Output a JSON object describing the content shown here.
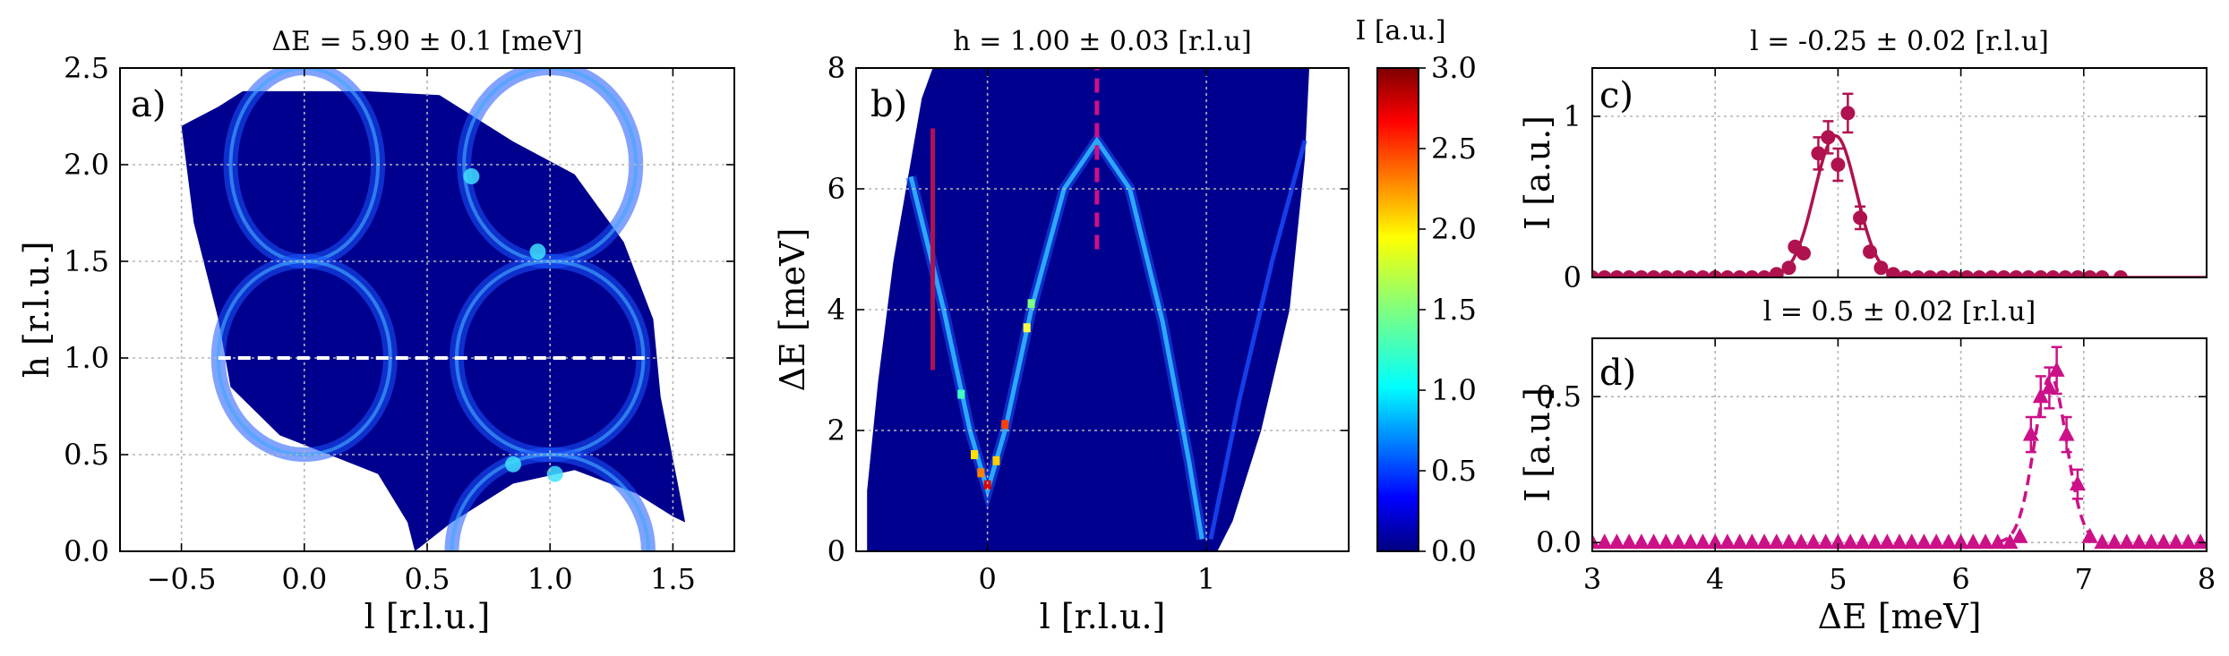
{
  "chart_data": [
    {
      "id": "a",
      "type": "heatmap",
      "panel_label": "a)",
      "title": "ΔE = 5.90 ± 0.1 [meV]",
      "xlabel": "l [r.l.u.]",
      "ylabel": "h [r.l.u.]",
      "xlim": [
        -0.75,
        1.75
      ],
      "ylim": [
        0.0,
        2.5
      ],
      "xticks": [
        "−0.5",
        "0.0",
        "0.5",
        "1.0",
        "1.5"
      ],
      "xtick_values": [
        -0.5,
        0.0,
        0.5,
        1.0,
        1.5
      ],
      "yticks": [
        "0.0",
        "0.5",
        "1.0",
        "1.5",
        "2.0",
        "2.5"
      ],
      "ytick_values": [
        0.0,
        0.5,
        1.0,
        1.5,
        2.0,
        2.5
      ],
      "grid": true,
      "colormap": "jet",
      "background_color": "#00008f",
      "rings": [
        {
          "center_l": 0.0,
          "center_h": 2.0,
          "radius_l": 0.3,
          "radius_h": 0.5
        },
        {
          "center_l": 1.0,
          "center_h": 2.0,
          "radius_l": 0.35,
          "radius_h": 0.5
        },
        {
          "center_l": 0.0,
          "center_h": 1.0,
          "radius_l": 0.35,
          "radius_h": 0.5
        },
        {
          "center_l": 1.0,
          "center_h": 1.0,
          "radius_l": 0.38,
          "radius_h": 0.5
        },
        {
          "center_l": 1.0,
          "center_h": 0.0,
          "radius_l": 0.4,
          "radius_h": 0.5
        }
      ],
      "cut_line": {
        "h": 1.0,
        "l_from": -0.35,
        "l_to": 1.4,
        "style": "dashed",
        "color": "#ffffff"
      }
    },
    {
      "id": "b",
      "type": "heatmap",
      "panel_label": "b)",
      "title": "h = 1.00 ± 0.03 [r.l.u]",
      "xlabel": "l [r.l.u.]",
      "ylabel": "ΔE [meV]",
      "xlim": [
        -0.6,
        1.65
      ],
      "ylim": [
        0,
        8
      ],
      "xticks": [
        "0",
        "1"
      ],
      "xtick_values": [
        0,
        1
      ],
      "yticks": [
        "0",
        "2",
        "4",
        "6",
        "8"
      ],
      "ytick_values": [
        0,
        2,
        4,
        6,
        8
      ],
      "grid": true,
      "colormap": "jet",
      "dispersion": {
        "minimum": {
          "l": 0.0,
          "E": 1.0
        },
        "maximum": {
          "l": 0.5,
          "E": 6.8
        }
      },
      "cut_lines": [
        {
          "l": -0.25,
          "E_from": 3.0,
          "E_to": 7.0,
          "style": "solid",
          "color": "#b0124f"
        },
        {
          "l": 0.5,
          "E_from": 5.0,
          "E_to": 8.0,
          "style": "dashed",
          "color": "#cc1188"
        }
      ],
      "colorbar": {
        "label": "I [a.u.]",
        "range": [
          0.0,
          3.0
        ],
        "ticks": [
          "0.0",
          "0.5",
          "1.0",
          "1.5",
          "2.0",
          "2.5",
          "3.0"
        ],
        "tick_values": [
          0.0,
          0.5,
          1.0,
          1.5,
          2.0,
          2.5,
          3.0
        ]
      }
    },
    {
      "id": "c",
      "type": "scatter",
      "panel_label": "c)",
      "title": "l = -0.25 ± 0.02 [r.l.u]",
      "xlabel": "",
      "ylabel": "I [a.u.]",
      "xlim": [
        3,
        8
      ],
      "ylim": [
        0,
        1.3
      ],
      "yticks": [
        "0",
        "1"
      ],
      "ytick_values": [
        0,
        1
      ],
      "grid": true,
      "color": "#b0124f",
      "marker": "circle",
      "points": [
        {
          "x": 3.0,
          "y": 0.0
        },
        {
          "x": 3.1,
          "y": 0.0
        },
        {
          "x": 3.2,
          "y": 0.0
        },
        {
          "x": 3.3,
          "y": 0.0
        },
        {
          "x": 3.4,
          "y": 0.0
        },
        {
          "x": 3.5,
          "y": 0.0
        },
        {
          "x": 3.6,
          "y": 0.0
        },
        {
          "x": 3.7,
          "y": 0.0
        },
        {
          "x": 3.8,
          "y": 0.0
        },
        {
          "x": 3.9,
          "y": 0.0
        },
        {
          "x": 4.0,
          "y": 0.0
        },
        {
          "x": 4.1,
          "y": 0.0
        },
        {
          "x": 4.2,
          "y": 0.0
        },
        {
          "x": 4.3,
          "y": 0.0
        },
        {
          "x": 4.4,
          "y": 0.0
        },
        {
          "x": 4.5,
          "y": 0.02
        },
        {
          "x": 4.6,
          "y": 0.06
        },
        {
          "x": 4.65,
          "y": 0.19
        },
        {
          "x": 4.72,
          "y": 0.15
        },
        {
          "x": 4.84,
          "y": 0.77,
          "err": 0.1
        },
        {
          "x": 4.92,
          "y": 0.87,
          "err": 0.1
        },
        {
          "x": 5.0,
          "y": 0.7,
          "err": 0.1
        },
        {
          "x": 5.08,
          "y": 1.02,
          "err": 0.12
        },
        {
          "x": 5.18,
          "y": 0.37,
          "err": 0.07
        },
        {
          "x": 5.26,
          "y": 0.16
        },
        {
          "x": 5.35,
          "y": 0.06
        },
        {
          "x": 5.45,
          "y": 0.02
        },
        {
          "x": 5.55,
          "y": 0.0
        },
        {
          "x": 5.65,
          "y": 0.0
        },
        {
          "x": 5.75,
          "y": 0.0
        },
        {
          "x": 5.85,
          "y": 0.0
        },
        {
          "x": 5.95,
          "y": 0.0
        },
        {
          "x": 6.05,
          "y": 0.0
        },
        {
          "x": 6.15,
          "y": 0.0
        },
        {
          "x": 6.25,
          "y": 0.0
        },
        {
          "x": 6.35,
          "y": 0.0
        },
        {
          "x": 6.45,
          "y": 0.0
        },
        {
          "x": 6.55,
          "y": 0.0
        },
        {
          "x": 6.65,
          "y": 0.0
        },
        {
          "x": 6.75,
          "y": 0.0
        },
        {
          "x": 6.85,
          "y": 0.0
        },
        {
          "x": 6.95,
          "y": 0.0
        },
        {
          "x": 7.05,
          "y": 0.0
        },
        {
          "x": 7.15,
          "y": 0.0
        },
        {
          "x": 7.3,
          "y": 0.0
        }
      ],
      "fit": {
        "style": "solid",
        "amplitude": 0.88,
        "center": 4.98,
        "sigma": 0.17,
        "x_from": 3.0,
        "x_to": 8.0
      }
    },
    {
      "id": "d",
      "type": "scatter",
      "panel_label": "d)",
      "title": "l = 0.5 ± 0.02 [r.l.u]",
      "xlabel": "ΔE [meV]",
      "ylabel": "I [a.u.]",
      "xlim": [
        3,
        8
      ],
      "ylim": [
        -0.03,
        0.7
      ],
      "xticks": [
        "3",
        "4",
        "5",
        "6",
        "7",
        "8"
      ],
      "xtick_values": [
        3,
        4,
        5,
        6,
        7,
        8
      ],
      "yticks": [
        "0.0",
        "0.5"
      ],
      "ytick_values": [
        0.0,
        0.5
      ],
      "grid": true,
      "color": "#cc1188",
      "marker": "triangle",
      "points": [
        {
          "x": 3.0,
          "y": 0.0
        },
        {
          "x": 3.1,
          "y": 0.0
        },
        {
          "x": 3.2,
          "y": 0.0
        },
        {
          "x": 3.3,
          "y": 0.0
        },
        {
          "x": 3.4,
          "y": 0.0
        },
        {
          "x": 3.5,
          "y": 0.0
        },
        {
          "x": 3.6,
          "y": 0.0
        },
        {
          "x": 3.7,
          "y": 0.0
        },
        {
          "x": 3.8,
          "y": 0.0
        },
        {
          "x": 3.9,
          "y": 0.0
        },
        {
          "x": 4.0,
          "y": 0.0
        },
        {
          "x": 4.1,
          "y": 0.0
        },
        {
          "x": 4.2,
          "y": 0.0
        },
        {
          "x": 4.3,
          "y": 0.0
        },
        {
          "x": 4.4,
          "y": 0.0
        },
        {
          "x": 4.5,
          "y": 0.0
        },
        {
          "x": 4.6,
          "y": 0.0
        },
        {
          "x": 4.7,
          "y": 0.0
        },
        {
          "x": 4.8,
          "y": 0.0
        },
        {
          "x": 4.9,
          "y": 0.0
        },
        {
          "x": 5.0,
          "y": 0.0
        },
        {
          "x": 5.1,
          "y": 0.0
        },
        {
          "x": 5.2,
          "y": 0.0
        },
        {
          "x": 5.3,
          "y": 0.0
        },
        {
          "x": 5.4,
          "y": 0.0
        },
        {
          "x": 5.5,
          "y": 0.0
        },
        {
          "x": 5.6,
          "y": 0.0
        },
        {
          "x": 5.7,
          "y": 0.0
        },
        {
          "x": 5.8,
          "y": 0.0
        },
        {
          "x": 5.9,
          "y": 0.0
        },
        {
          "x": 6.0,
          "y": 0.0
        },
        {
          "x": 6.1,
          "y": 0.0
        },
        {
          "x": 6.2,
          "y": 0.0
        },
        {
          "x": 6.3,
          "y": 0.0
        },
        {
          "x": 6.4,
          "y": 0.0
        },
        {
          "x": 6.48,
          "y": 0.02
        },
        {
          "x": 6.57,
          "y": 0.37,
          "err": 0.06
        },
        {
          "x": 6.65,
          "y": 0.5,
          "err": 0.07
        },
        {
          "x": 6.72,
          "y": 0.53,
          "err": 0.07
        },
        {
          "x": 6.78,
          "y": 0.59,
          "err": 0.08
        },
        {
          "x": 6.86,
          "y": 0.37,
          "err": 0.06
        },
        {
          "x": 6.95,
          "y": 0.2,
          "err": 0.05
        },
        {
          "x": 7.05,
          "y": 0.02
        },
        {
          "x": 7.15,
          "y": 0.0
        },
        {
          "x": 7.25,
          "y": 0.0
        },
        {
          "x": 7.35,
          "y": 0.0
        },
        {
          "x": 7.45,
          "y": 0.0
        },
        {
          "x": 7.55,
          "y": 0.0
        },
        {
          "x": 7.65,
          "y": 0.0
        },
        {
          "x": 7.75,
          "y": 0.0
        },
        {
          "x": 7.85,
          "y": 0.0
        },
        {
          "x": 7.95,
          "y": 0.0
        }
      ],
      "fit": {
        "style": "dashed",
        "amplitude": 0.57,
        "center": 6.73,
        "sigma": 0.13,
        "x_from": 6.3,
        "x_to": 7.15
      }
    }
  ]
}
